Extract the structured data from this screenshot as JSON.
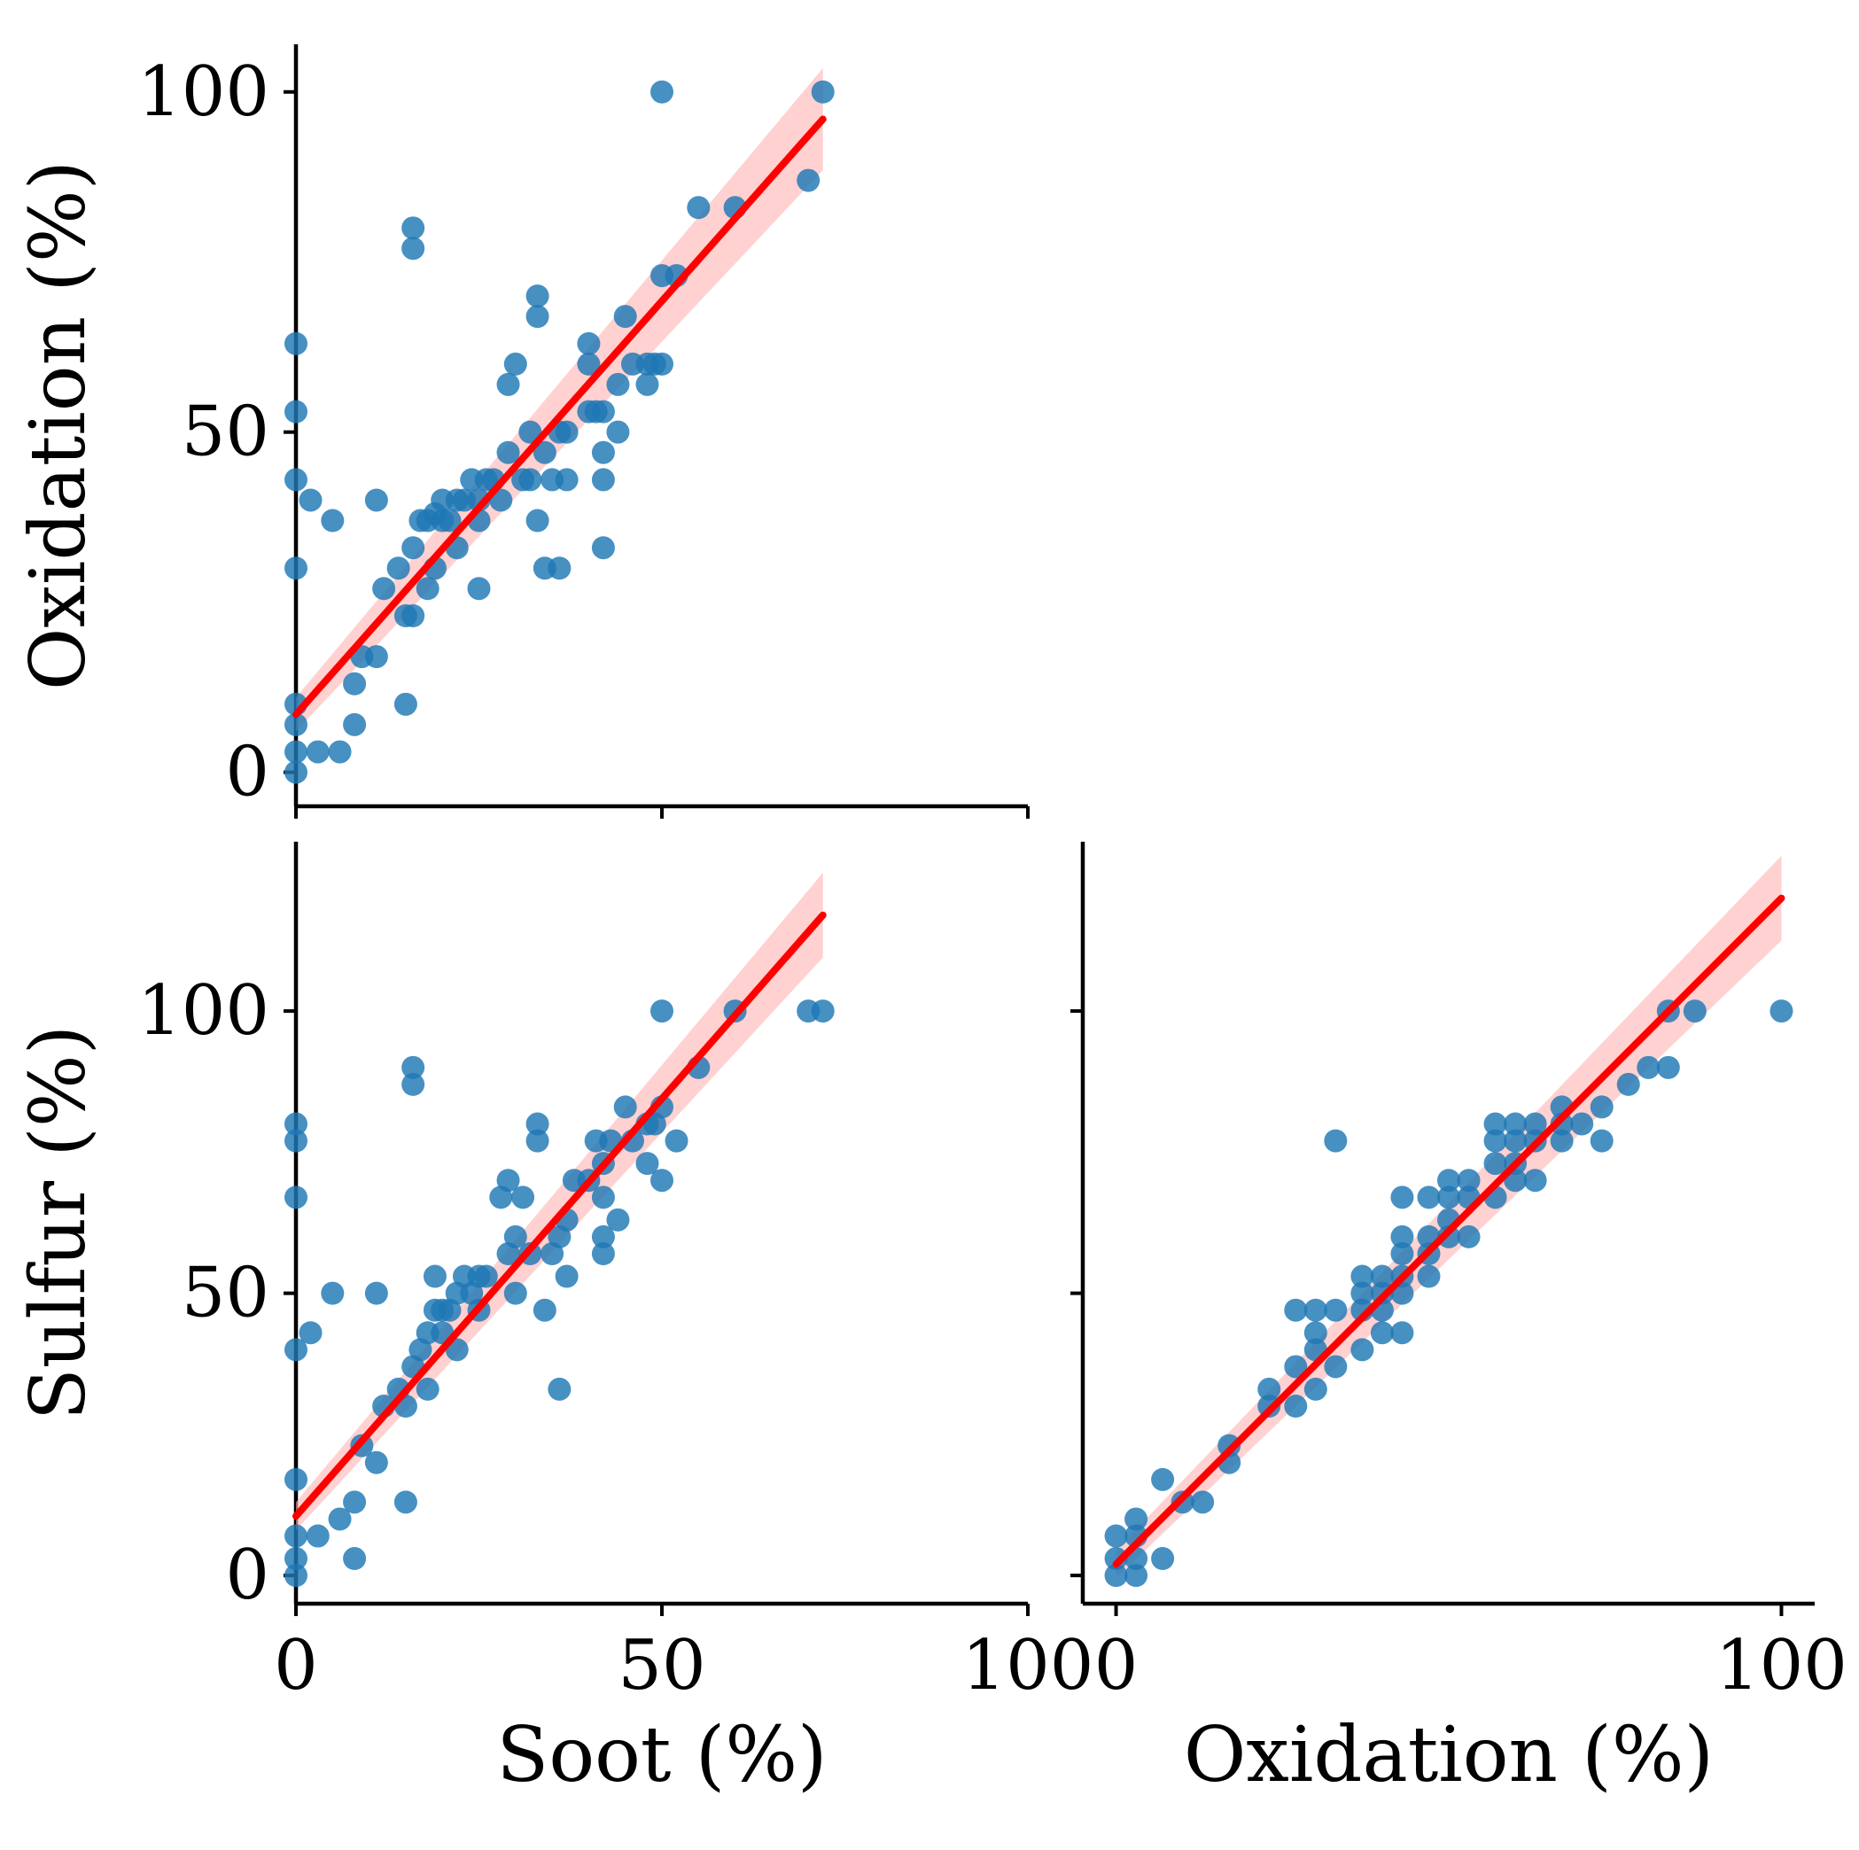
{
  "colors": {
    "point": "#1f77b4",
    "fit": "#ff0000",
    "band": "#ffb3b3",
    "axis": "#000000"
  },
  "chart_data": [
    {
      "type": "scatter",
      "panel": "top-left",
      "x_var": "Soot (%)",
      "y_var": "Oxidation (%)",
      "xlim": [
        0,
        100
      ],
      "ylim": [
        -5,
        107
      ],
      "ylabel": "Oxidation (%)",
      "xlabel": "",
      "yticks": [
        0,
        50,
        100
      ],
      "ytick_labels": [
        "0",
        "50",
        "100"
      ],
      "xticks": [
        0,
        50,
        100
      ],
      "xtick_labels": [],
      "fit": {
        "x0": 0,
        "y0": 8.5,
        "x1": 72,
        "y1": 96
      },
      "points": [
        [
          0,
          0
        ],
        [
          0,
          3
        ],
        [
          0,
          7
        ],
        [
          0,
          10
        ],
        [
          0,
          30
        ],
        [
          0,
          43
        ],
        [
          0,
          53
        ],
        [
          0,
          63
        ],
        [
          2,
          40
        ],
        [
          3,
          3
        ],
        [
          5,
          37
        ],
        [
          6,
          3
        ],
        [
          8,
          7
        ],
        [
          8,
          13
        ],
        [
          9,
          17
        ],
        [
          11,
          17
        ],
        [
          11,
          40
        ],
        [
          12,
          27
        ],
        [
          14,
          30
        ],
        [
          15,
          10
        ],
        [
          15,
          23
        ],
        [
          16,
          23
        ],
        [
          16,
          33
        ],
        [
          16,
          77
        ],
        [
          16,
          80
        ],
        [
          17,
          37
        ],
        [
          18,
          27
        ],
        [
          18,
          37
        ],
        [
          19,
          30
        ],
        [
          19,
          38
        ],
        [
          20,
          37
        ],
        [
          20,
          40
        ],
        [
          21,
          37
        ],
        [
          22,
          33
        ],
        [
          22,
          40
        ],
        [
          23,
          40
        ],
        [
          24,
          43
        ],
        [
          25,
          40
        ],
        [
          25,
          27
        ],
        [
          25,
          37
        ],
        [
          26,
          43
        ],
        [
          27,
          43
        ],
        [
          28,
          40
        ],
        [
          29,
          57
        ],
        [
          29,
          47
        ],
        [
          30,
          60
        ],
        [
          31,
          43
        ],
        [
          32,
          50
        ],
        [
          32,
          43
        ],
        [
          33,
          67
        ],
        [
          33,
          70
        ],
        [
          33,
          37
        ],
        [
          34,
          30
        ],
        [
          34,
          47
        ],
        [
          35,
          43
        ],
        [
          36,
          30
        ],
        [
          36,
          50
        ],
        [
          37,
          43
        ],
        [
          37,
          50
        ],
        [
          40,
          53
        ],
        [
          40,
          60
        ],
        [
          40,
          63
        ],
        [
          41,
          53
        ],
        [
          42,
          47
        ],
        [
          42,
          53
        ],
        [
          42,
          33
        ],
        [
          42,
          43
        ],
        [
          44,
          57
        ],
        [
          44,
          50
        ],
        [
          45,
          67
        ],
        [
          46,
          60
        ],
        [
          48,
          57
        ],
        [
          48,
          60
        ],
        [
          49,
          60
        ],
        [
          50,
          60
        ],
        [
          50,
          73
        ],
        [
          50,
          100
        ],
        [
          52,
          73
        ],
        [
          55,
          83
        ],
        [
          60,
          83
        ],
        [
          70,
          87
        ],
        [
          72,
          100
        ]
      ]
    },
    {
      "type": "scatter",
      "panel": "bottom-left",
      "x_var": "Soot (%)",
      "y_var": "Sulfur (%)",
      "xlim": [
        0,
        100
      ],
      "ylim": [
        -5,
        130
      ],
      "ylabel": "Sulfur (%)",
      "xlabel": "Soot (%)",
      "yticks": [
        0,
        50,
        100
      ],
      "ytick_labels": [
        "0",
        "50",
        "100"
      ],
      "xticks": [
        0,
        50,
        100
      ],
      "xtick_labels": [
        "0",
        "50",
        "100"
      ],
      "fit": {
        "x0": 0,
        "y0": 10.5,
        "x1": 72,
        "y1": 117
      },
      "points": [
        [
          0,
          0
        ],
        [
          0,
          3
        ],
        [
          0,
          7
        ],
        [
          0,
          17
        ],
        [
          0,
          40
        ],
        [
          0,
          67
        ],
        [
          0,
          77
        ],
        [
          0,
          80
        ],
        [
          2,
          43
        ],
        [
          3,
          7
        ],
        [
          5,
          50
        ],
        [
          6,
          10
        ],
        [
          8,
          3
        ],
        [
          8,
          13
        ],
        [
          9,
          23
        ],
        [
          11,
          20
        ],
        [
          11,
          50
        ],
        [
          12,
          30
        ],
        [
          14,
          33
        ],
        [
          15,
          30
        ],
        [
          15,
          13
        ],
        [
          16,
          37
        ],
        [
          16,
          87
        ],
        [
          16,
          90
        ],
        [
          17,
          40
        ],
        [
          18,
          33
        ],
        [
          18,
          43
        ],
        [
          19,
          47
        ],
        [
          19,
          53
        ],
        [
          20,
          43
        ],
        [
          20,
          47
        ],
        [
          21,
          47
        ],
        [
          22,
          40
        ],
        [
          22,
          50
        ],
        [
          23,
          53
        ],
        [
          24,
          50
        ],
        [
          25,
          47
        ],
        [
          25,
          53
        ],
        [
          26,
          53
        ],
        [
          28,
          67
        ],
        [
          29,
          70
        ],
        [
          29,
          57
        ],
        [
          30,
          60
        ],
        [
          30,
          50
        ],
        [
          31,
          67
        ],
        [
          32,
          57
        ],
        [
          33,
          80
        ],
        [
          33,
          77
        ],
        [
          34,
          47
        ],
        [
          35,
          57
        ],
        [
          36,
          60
        ],
        [
          36,
          33
        ],
        [
          37,
          63
        ],
        [
          37,
          53
        ],
        [
          38,
          70
        ],
        [
          40,
          70
        ],
        [
          41,
          77
        ],
        [
          42,
          73
        ],
        [
          42,
          67
        ],
        [
          42,
          60
        ],
        [
          42,
          57
        ],
        [
          43,
          77
        ],
        [
          44,
          63
        ],
        [
          45,
          83
        ],
        [
          46,
          77
        ],
        [
          48,
          73
        ],
        [
          48,
          80
        ],
        [
          49,
          80
        ],
        [
          50,
          70
        ],
        [
          50,
          83
        ],
        [
          50,
          100
        ],
        [
          52,
          77
        ],
        [
          55,
          90
        ],
        [
          60,
          100
        ],
        [
          70,
          100
        ],
        [
          72,
          100
        ]
      ]
    },
    {
      "type": "scatter",
      "panel": "bottom-right",
      "x_var": "Oxidation (%)",
      "y_var": "Sulfur (%)",
      "xlim": [
        -5,
        105
      ],
      "ylim": [
        -5,
        130
      ],
      "ylabel": "",
      "xlabel": "Oxidation (%)",
      "yticks": [
        0,
        50,
        100
      ],
      "ytick_labels": [],
      "xticks": [
        0,
        100
      ],
      "xtick_labels": [
        "0",
        "100"
      ],
      "fit": {
        "x0": 0,
        "y0": 2,
        "x1": 100,
        "y1": 120
      },
      "points": [
        [
          0,
          0
        ],
        [
          0,
          3
        ],
        [
          0,
          7
        ],
        [
          3,
          0
        ],
        [
          3,
          3
        ],
        [
          3,
          7
        ],
        [
          3,
          10
        ],
        [
          7,
          3
        ],
        [
          7,
          17
        ],
        [
          10,
          13
        ],
        [
          13,
          13
        ],
        [
          17,
          20
        ],
        [
          17,
          23
        ],
        [
          23,
          30
        ],
        [
          23,
          33
        ],
        [
          27,
          30
        ],
        [
          27,
          37
        ],
        [
          27,
          47
        ],
        [
          30,
          33
        ],
        [
          30,
          40
        ],
        [
          30,
          43
        ],
        [
          30,
          47
        ],
        [
          33,
          37
        ],
        [
          33,
          47
        ],
        [
          33,
          77
        ],
        [
          37,
          40
        ],
        [
          37,
          47
        ],
        [
          37,
          50
        ],
        [
          37,
          53
        ],
        [
          40,
          43
        ],
        [
          40,
          47
        ],
        [
          40,
          50
        ],
        [
          40,
          53
        ],
        [
          43,
          43
        ],
        [
          43,
          50
        ],
        [
          43,
          53
        ],
        [
          43,
          57
        ],
        [
          43,
          60
        ],
        [
          43,
          67
        ],
        [
          47,
          53
        ],
        [
          47,
          57
        ],
        [
          47,
          60
        ],
        [
          47,
          67
        ],
        [
          50,
          60
        ],
        [
          50,
          63
        ],
        [
          50,
          67
        ],
        [
          50,
          70
        ],
        [
          53,
          60
        ],
        [
          53,
          67
        ],
        [
          53,
          70
        ],
        [
          57,
          67
        ],
        [
          57,
          73
        ],
        [
          57,
          77
        ],
        [
          57,
          80
        ],
        [
          60,
          70
        ],
        [
          60,
          73
        ],
        [
          60,
          77
        ],
        [
          60,
          80
        ],
        [
          63,
          70
        ],
        [
          63,
          77
        ],
        [
          63,
          80
        ],
        [
          67,
          77
        ],
        [
          67,
          80
        ],
        [
          67,
          83
        ],
        [
          70,
          80
        ],
        [
          73,
          77
        ],
        [
          73,
          83
        ],
        [
          77,
          87
        ],
        [
          80,
          90
        ],
        [
          83,
          90
        ],
        [
          83,
          100
        ],
        [
          87,
          100
        ],
        [
          100,
          100
        ]
      ]
    }
  ]
}
